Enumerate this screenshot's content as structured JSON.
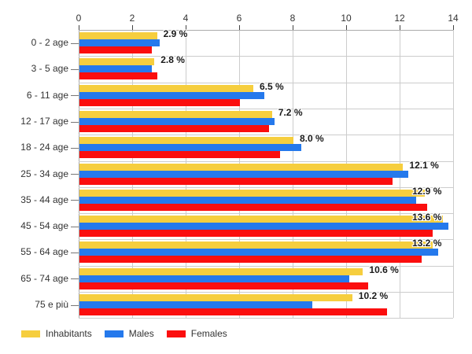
{
  "chart_data": {
    "type": "bar",
    "orientation": "horizontal",
    "title": "",
    "categories": [
      "0 - 2 age",
      "3 - 5 age",
      "6 - 11 age",
      "12 - 17 age",
      "18 - 24 age",
      "25 - 34 age",
      "35 - 44 age",
      "45 - 54 age",
      "55 - 64 age",
      "65 - 74 age",
      "75 e più"
    ],
    "series": [
      {
        "name": "Inhabitants",
        "color": "#F6CE3E",
        "values": [
          2.9,
          2.8,
          6.5,
          7.2,
          8.0,
          12.1,
          12.9,
          13.6,
          13.2,
          10.6,
          10.2
        ]
      },
      {
        "name": "Males",
        "color": "#2579EC",
        "values": [
          3.0,
          2.7,
          6.9,
          7.3,
          8.3,
          12.3,
          12.6,
          13.8,
          13.4,
          10.1,
          8.7
        ]
      },
      {
        "name": "Females",
        "color": "#FB0E0E",
        "values": [
          2.7,
          2.9,
          6.0,
          7.1,
          7.5,
          11.7,
          13.0,
          13.2,
          12.8,
          10.8,
          11.5
        ]
      }
    ],
    "value_labels": [
      "2.9 %",
      "2.8 %",
      "6.5 %",
      "7.2 %",
      "8.0 %",
      "12.1 %",
      "12.9 %",
      "13.6 %",
      "13.2 %",
      "10.6 %",
      "10.2 %"
    ],
    "x_axis": {
      "position": "top",
      "min": 0,
      "max": 14,
      "tick_step": 2,
      "ticks": [
        "0",
        "2",
        "4",
        "6",
        "8",
        "10",
        "12",
        "14"
      ]
    },
    "grid": true,
    "legend_position": "bottom-left"
  },
  "colors": {
    "background": "#FFFFFF",
    "grid": "#CCCCCC",
    "axis": "#AAAAAA",
    "text": "#333333",
    "value_label_text": "#1A1A1A"
  }
}
